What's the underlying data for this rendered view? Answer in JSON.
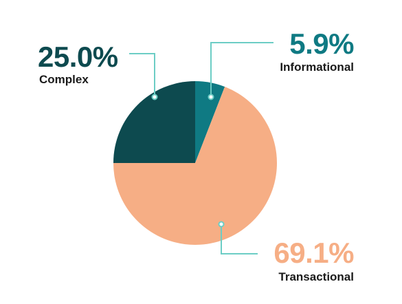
{
  "chart_data": {
    "type": "pie",
    "title": "",
    "slices": [
      {
        "label": "Informational",
        "value": 5.9,
        "display": "5.9%",
        "color": "#0f7a83"
      },
      {
        "label": "Transactional",
        "value": 69.1,
        "display": "69.1%",
        "color": "#f6ae85"
      },
      {
        "label": "Complex",
        "value": 25.0,
        "display": "25.0%",
        "color": "#0d4a4f"
      }
    ],
    "start_angle": "12 o'clock",
    "direction": "clockwise",
    "legend": "none",
    "callout_line_color": "#6ccdc5",
    "text_color": "#1a1a1a"
  }
}
